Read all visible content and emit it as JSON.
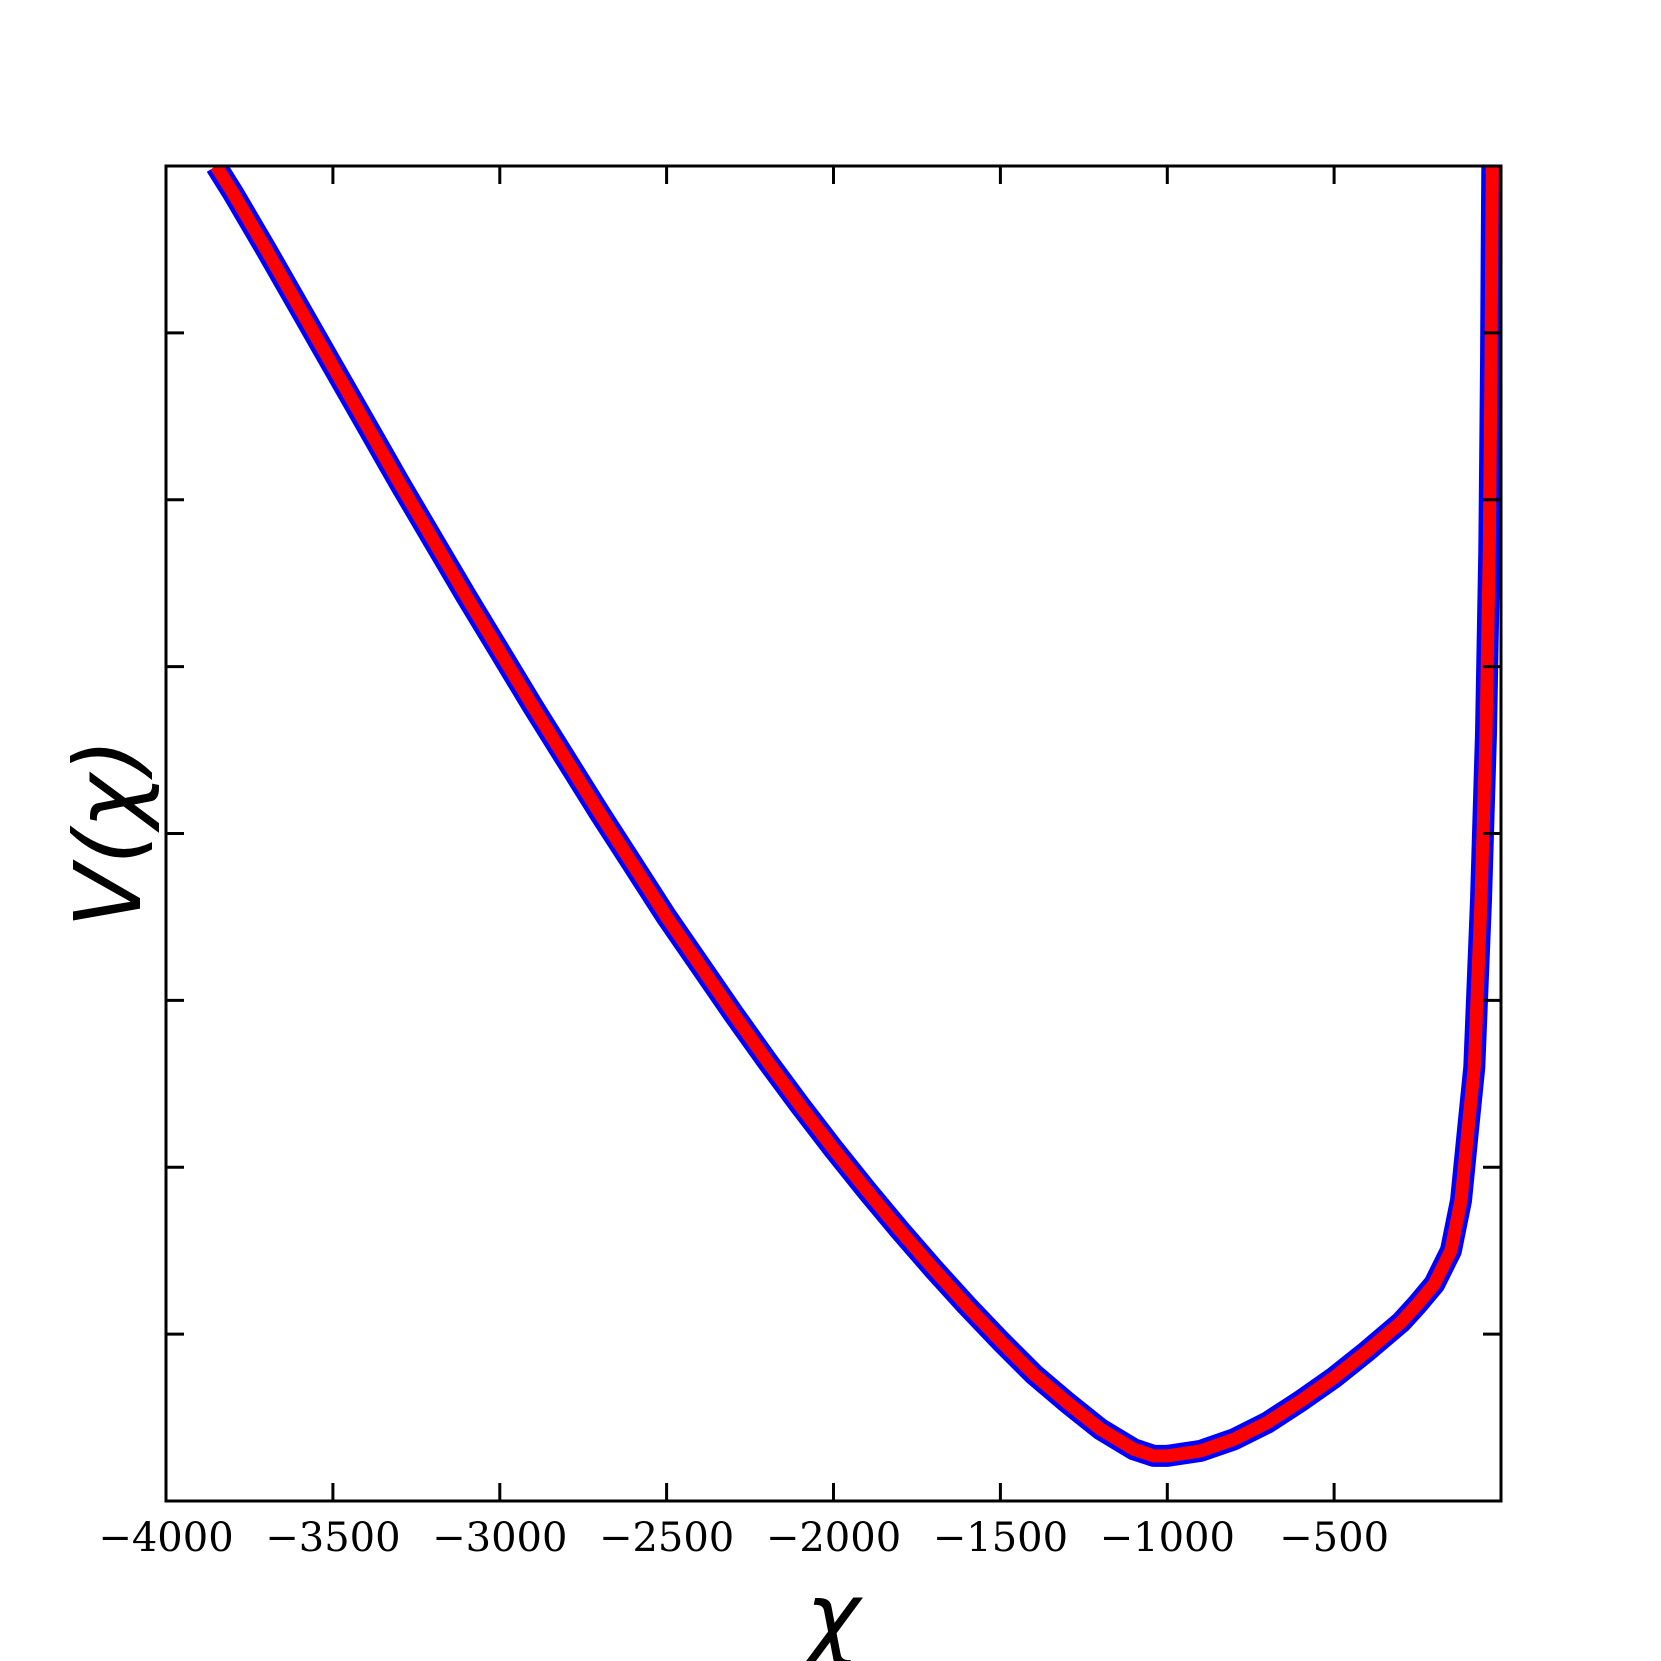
{
  "chart_data": {
    "type": "line",
    "title": "",
    "xlabel": "χ",
    "ylabel": "V(χ)",
    "xlim": [
      -4000,
      0
    ],
    "ylim": [
      0,
      8
    ],
    "grid": false,
    "legend": "none",
    "x_ticks": [
      -4000,
      -3500,
      -3000,
      -2500,
      -2000,
      -1500,
      -1000,
      -500
    ],
    "x_tick_labels": [
      "−4000",
      "−3500",
      "−3000",
      "−2500",
      "−2000",
      "−1500",
      "−1000",
      "−500"
    ],
    "y_ticks": [
      1,
      2,
      3,
      4,
      5,
      6,
      7
    ],
    "y_tick_labels": [],
    "series": [
      {
        "color": "#ff0000",
        "edge_color": "#0000ff",
        "x": [
          -3850,
          -3800,
          -3700,
          -3600,
          -3500,
          -3400,
          -3300,
          -3200,
          -3100,
          -3000,
          -2900,
          -2800,
          -2700,
          -2600,
          -2500,
          -2400,
          -2300,
          -2200,
          -2100,
          -2000,
          -1900,
          -1800,
          -1700,
          -1600,
          -1500,
          -1400,
          -1300,
          -1200,
          -1100,
          -1040,
          -1000,
          -900,
          -800,
          -700,
          -600,
          -500,
          -400,
          -300,
          -250,
          -200,
          -150,
          -120,
          -100,
          -80,
          -60,
          -45,
          -35,
          -30,
          -28,
          -26
        ],
        "y": [
          8.0,
          7.84,
          7.5,
          7.15,
          6.8,
          6.45,
          6.1,
          5.76,
          5.42,
          5.09,
          4.76,
          4.44,
          4.12,
          3.81,
          3.5,
          3.21,
          2.92,
          2.64,
          2.37,
          2.11,
          1.86,
          1.62,
          1.39,
          1.17,
          0.96,
          0.76,
          0.59,
          0.43,
          0.31,
          0.27,
          0.27,
          0.3,
          0.37,
          0.47,
          0.6,
          0.74,
          0.9,
          1.07,
          1.18,
          1.3,
          1.5,
          1.8,
          2.2,
          2.6,
          3.6,
          4.6,
          5.7,
          6.8,
          7.5,
          8.0
        ]
      }
    ]
  }
}
